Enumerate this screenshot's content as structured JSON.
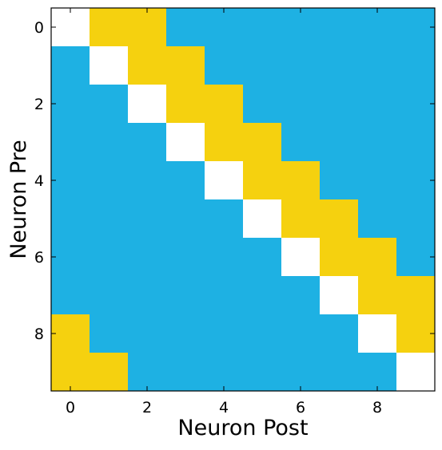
{
  "chart_data": {
    "type": "heatmap",
    "title": "",
    "xlabel": "Neuron Post",
    "ylabel": "Neuron Pre",
    "x_ticks": [
      "0",
      "2",
      "4",
      "6",
      "8"
    ],
    "y_ticks": [
      "0",
      "2",
      "4",
      "6",
      "8"
    ],
    "x_tick_values": [
      0,
      2,
      4,
      6,
      8
    ],
    "y_tick_values": [
      0,
      2,
      4,
      6,
      8
    ],
    "rows": 10,
    "cols": 10,
    "category_colors": {
      "self": "#ffffff",
      "connected": "#f5d10f",
      "unconnected": "#1eb1e3"
    },
    "matrix": [
      [
        "self",
        "connected",
        "connected",
        "unconnected",
        "unconnected",
        "unconnected",
        "unconnected",
        "unconnected",
        "unconnected",
        "unconnected"
      ],
      [
        "unconnected",
        "self",
        "connected",
        "connected",
        "unconnected",
        "unconnected",
        "unconnected",
        "unconnected",
        "unconnected",
        "unconnected"
      ],
      [
        "unconnected",
        "unconnected",
        "self",
        "connected",
        "connected",
        "unconnected",
        "unconnected",
        "unconnected",
        "unconnected",
        "unconnected"
      ],
      [
        "unconnected",
        "unconnected",
        "unconnected",
        "self",
        "connected",
        "connected",
        "unconnected",
        "unconnected",
        "unconnected",
        "unconnected"
      ],
      [
        "unconnected",
        "unconnected",
        "unconnected",
        "unconnected",
        "self",
        "connected",
        "connected",
        "unconnected",
        "unconnected",
        "unconnected"
      ],
      [
        "unconnected",
        "unconnected",
        "unconnected",
        "unconnected",
        "unconnected",
        "self",
        "connected",
        "connected",
        "unconnected",
        "unconnected"
      ],
      [
        "unconnected",
        "unconnected",
        "unconnected",
        "unconnected",
        "unconnected",
        "unconnected",
        "self",
        "connected",
        "connected",
        "unconnected"
      ],
      [
        "unconnected",
        "unconnected",
        "unconnected",
        "unconnected",
        "unconnected",
        "unconnected",
        "unconnected",
        "self",
        "connected",
        "connected"
      ],
      [
        "connected",
        "unconnected",
        "unconnected",
        "unconnected",
        "unconnected",
        "unconnected",
        "unconnected",
        "unconnected",
        "self",
        "connected"
      ],
      [
        "connected",
        "connected",
        "unconnected",
        "unconnected",
        "unconnected",
        "unconnected",
        "unconnected",
        "unconnected",
        "unconnected",
        "self"
      ]
    ],
    "grid": false,
    "legend": "none"
  }
}
